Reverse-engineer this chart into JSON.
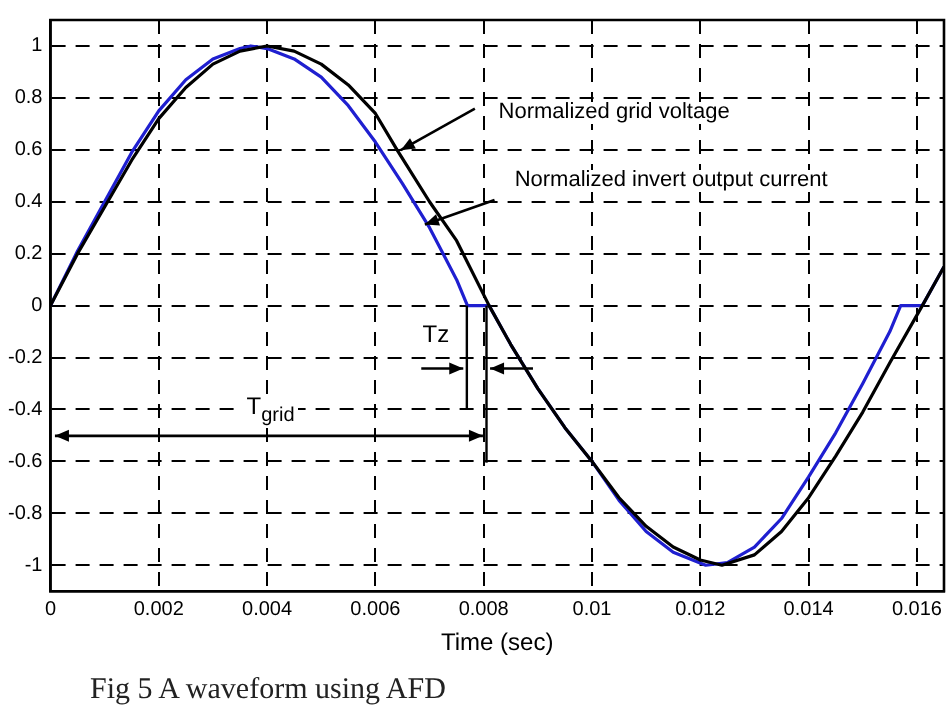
{
  "chart_data": {
    "type": "line",
    "xlabel": "Time (sec)",
    "xlim": [
      0,
      0.0165
    ],
    "xticks": [
      0,
      0.002,
      0.004,
      0.006,
      0.008,
      0.01,
      0.012,
      0.014,
      0.016
    ],
    "ylim": [
      -1.1,
      1.1
    ],
    "yticks": [
      -1,
      -0.8,
      -0.6,
      -0.4,
      -0.2,
      0,
      0.2,
      0.4,
      0.6,
      0.8,
      1
    ],
    "grid": true,
    "legend": false,
    "marker": "none",
    "line_style": "solid",
    "series": [
      {
        "color": "#000000",
        "x": [
          0,
          0.0005,
          0.001,
          0.0015,
          0.002,
          0.0025,
          0.003,
          0.0035,
          0.004,
          0.0045,
          0.005,
          0.0055,
          0.006,
          0.0064,
          0.007,
          0.0075,
          0.0081,
          0.0085,
          0.009,
          0.0095,
          0.01,
          0.0105,
          0.011,
          0.0115,
          0.012,
          0.0124,
          0.013,
          0.0135,
          0.014,
          0.0145,
          0.015,
          0.0155,
          0.0161,
          0.0165
        ],
        "values": [
          0,
          0.2,
          0.38,
          0.56,
          0.72,
          0.84,
          0.93,
          0.98,
          1,
          0.98,
          0.93,
          0.85,
          0.74,
          0.6,
          0.4,
          0.25,
          0,
          -0.15,
          -0.32,
          -0.47,
          -0.6,
          -0.74,
          -0.85,
          -0.93,
          -0.98,
          -1,
          -0.96,
          -0.87,
          -0.74,
          -0.58,
          -0.41,
          -0.22,
          0,
          0.15
        ]
      },
      {
        "color": "#1f1fd0",
        "x": [
          0,
          0.0005,
          0.001,
          0.0015,
          0.002,
          0.0025,
          0.003,
          0.0035,
          0.0037,
          0.004,
          0.0045,
          0.005,
          0.0055,
          0.006,
          0.0065,
          0.007,
          0.0075,
          0.0077,
          0.0081,
          0.0085,
          0.009,
          0.0095,
          0.01,
          0.0105,
          0.011,
          0.0115,
          0.0121,
          0.0125,
          0.013,
          0.0135,
          0.014,
          0.0145,
          0.015,
          0.0155,
          0.0157,
          0.0161,
          0.0165
        ],
        "values": [
          0,
          0.21,
          0.4,
          0.59,
          0.75,
          0.87,
          0.95,
          0.99,
          1,
          0.99,
          0.95,
          0.88,
          0.77,
          0.63,
          0.47,
          0.3,
          0.1,
          0,
          0,
          -0.15,
          -0.32,
          -0.47,
          -0.6,
          -0.75,
          -0.87,
          -0.95,
          -1,
          -0.99,
          -0.93,
          -0.82,
          -0.66,
          -0.49,
          -0.3,
          -0.1,
          0,
          0,
          0.15
        ]
      }
    ],
    "annotations": [
      "Normalized grid voltage",
      "Normalized invert output current",
      "T$_{grid}$",
      "Tz",
      "Fig 5 A waveform using AFD"
    ]
  }
}
